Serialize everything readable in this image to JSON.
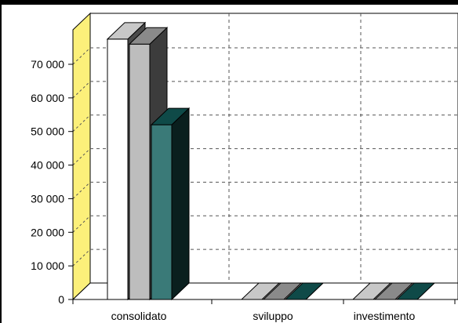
{
  "chart_data": {
    "type": "bar",
    "style": "3d-clustered-columns",
    "categories": [
      "consolidato",
      "sviluppo",
      "investimento"
    ],
    "series": [
      {
        "color": "#ffffff",
        "top_color": "#c8c8c8",
        "side_color": "#4a4a4a",
        "values": [
          77500,
          0,
          0
        ]
      },
      {
        "color": "#bdbdbd",
        "top_color": "#8a8a8a",
        "side_color": "#3c3c3c",
        "values": [
          76000,
          0,
          0
        ]
      },
      {
        "color": "#3a7a78",
        "top_color": "#0f4a48",
        "side_color": "#0a1f1e",
        "values": [
          52000,
          0,
          0
        ]
      }
    ],
    "y_ticks": [
      0,
      10000,
      20000,
      30000,
      40000,
      50000,
      60000,
      70000
    ],
    "y_tick_labels": [
      "0",
      "10 000",
      "20 000",
      "30 000",
      "40 000",
      "50 000",
      "60 000",
      "70 000"
    ],
    "ylim": [
      0,
      80000
    ],
    "grid": true,
    "grid_style": "dashed",
    "back_wall_color": "#ffffff",
    "side_wall_color": "#fcf07a",
    "legend": "none"
  }
}
